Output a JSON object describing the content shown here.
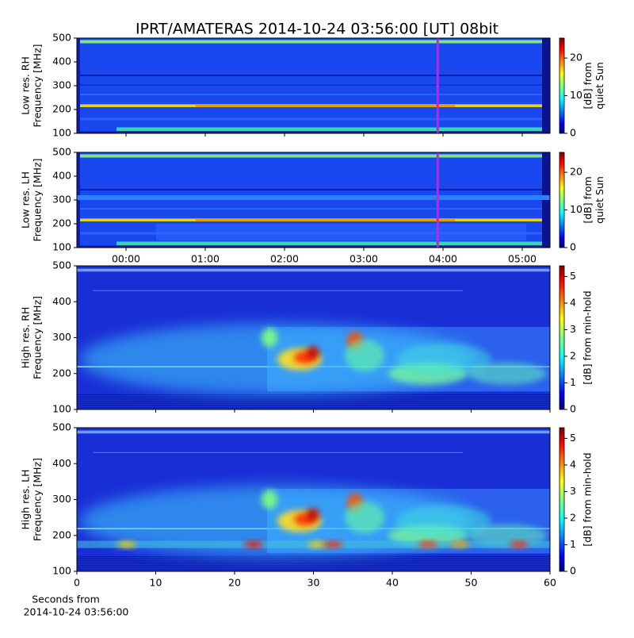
{
  "figure": {
    "title": "IPRT/AMATERAS 2014-10-24 03:56:00 [UT]   08bit",
    "xlabel": [
      "Seconds from",
      "2014-10-24 03:56:00"
    ]
  },
  "chart_data": [
    {
      "type": "heatmap",
      "ylabel": [
        "Low res. RH",
        "Frequency [MHz]"
      ],
      "xlim": [
        -0.62,
        5.35
      ],
      "xticks": [
        0,
        1,
        2,
        3,
        4,
        5
      ],
      "ylim": [
        100,
        500
      ],
      "yticks": [
        100,
        200,
        300,
        400,
        500
      ],
      "marker_x": 3.933,
      "marker_color": "#d21fd2",
      "colorbar": {
        "label": [
          "[dB] from",
          "quiet Sun"
        ],
        "lim": [
          0,
          25.3
        ],
        "ticks": [
          0,
          10,
          20
        ]
      }
    },
    {
      "type": "heatmap",
      "ylabel": [
        "Low res. LH",
        "Frequency [MHz]"
      ],
      "xlim": [
        -0.62,
        5.35
      ],
      "xticks": [
        {
          "value": 0,
          "label": "00:00"
        },
        {
          "value": 1,
          "label": "01:00"
        },
        {
          "value": 2,
          "label": "02:00"
        },
        {
          "value": 3,
          "label": "03:00"
        },
        {
          "value": 4,
          "label": "04:00"
        },
        {
          "value": 5,
          "label": "05:00"
        }
      ],
      "ylim": [
        100,
        500
      ],
      "yticks": [
        100,
        200,
        300,
        400,
        500
      ],
      "marker_x": 3.933,
      "marker_color": "#d21fd2",
      "colorbar": {
        "label": [
          "[dB] from",
          "quiet Sun"
        ],
        "lim": [
          0,
          25.3
        ],
        "ticks": [
          0,
          10,
          20
        ]
      }
    },
    {
      "type": "heatmap",
      "ylabel": [
        "High res. RH",
        "Frequency [MHz]"
      ],
      "xlim": [
        0,
        60
      ],
      "xticks": [
        0,
        10,
        20,
        30,
        40,
        50,
        60
      ],
      "ylim": [
        100,
        500
      ],
      "yticks": [
        100,
        200,
        300,
        400,
        500
      ],
      "colorbar": {
        "label": [
          "[dB] from min-hold"
        ],
        "lim": [
          0,
          5.4
        ],
        "ticks": [
          0,
          1,
          2,
          3,
          4,
          5
        ]
      }
    },
    {
      "type": "heatmap",
      "ylabel": [
        "High res. LH",
        "Frequency [MHz]"
      ],
      "xlim": [
        0,
        60
      ],
      "xticks": [
        0,
        10,
        20,
        30,
        40,
        50,
        60
      ],
      "ylim": [
        100,
        500
      ],
      "yticks": [
        100,
        200,
        300,
        400,
        500
      ],
      "colorbar": {
        "label": [
          "[dB] from min-hold"
        ],
        "lim": [
          0,
          5.4
        ],
        "ticks": [
          0,
          1,
          2,
          3,
          4,
          5
        ]
      }
    }
  ]
}
